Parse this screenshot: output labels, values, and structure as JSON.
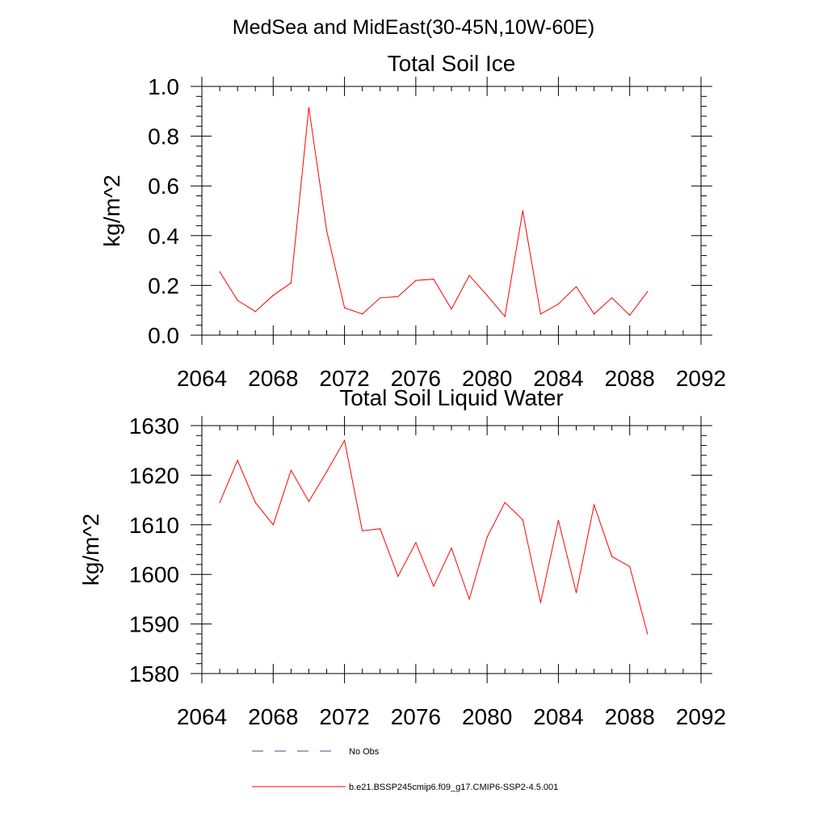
{
  "figure": {
    "title": "MedSea and MidEast(30-45N,10W-60E)"
  },
  "legend": [
    {
      "label": "No Obs",
      "color": "#4a4a8a",
      "dash": "dashed"
    },
    {
      "label": "b.e21.BSSP245cmip6.f09_g17.CMIP6-SSP2-4.5.001",
      "color": "#ff0000",
      "dash": "solid"
    }
  ],
  "chart_data": [
    {
      "type": "line",
      "title": "Total Soil Ice",
      "xlabel": "",
      "ylabel": "kg/m^2",
      "xlim": [
        2064,
        2092
      ],
      "ylim": [
        0,
        1
      ],
      "xticks": [
        2064,
        2068,
        2072,
        2076,
        2080,
        2084,
        2088,
        2092
      ],
      "xtick_labels": [
        "2064",
        "2068",
        "2072",
        "2076",
        "2080",
        "2084",
        "2088",
        "2092"
      ],
      "yticks": [
        0,
        0.2,
        0.4,
        0.6,
        0.8,
        1.0
      ],
      "ytick_labels": [
        "0.0",
        "0.2",
        "0.4",
        "0.6",
        "0.8",
        "1.0"
      ],
      "grid": false,
      "series": [
        {
          "color": "#ff0000",
          "x": [
            2065,
            2066,
            2067,
            2068,
            2069,
            2070,
            2071,
            2072,
            2073,
            2074,
            2075,
            2076,
            2077,
            2078,
            2079,
            2080,
            2081,
            2082,
            2083,
            2084,
            2085,
            2086,
            2087,
            2088,
            2089
          ],
          "values": [
            0.255,
            0.14,
            0.095,
            0.16,
            0.21,
            0.915,
            0.42,
            0.11,
            0.085,
            0.15,
            0.155,
            0.22,
            0.225,
            0.105,
            0.24,
            0.16,
            0.075,
            0.5,
            0.085,
            0.125,
            0.195,
            0.085,
            0.15,
            0.08,
            0.175
          ]
        }
      ]
    },
    {
      "type": "line",
      "title": "Total Soil Liquid Water",
      "xlabel": "",
      "ylabel": "kg/m^2",
      "xlim": [
        2064,
        2092
      ],
      "ylim": [
        1580,
        1630
      ],
      "xticks": [
        2064,
        2068,
        2072,
        2076,
        2080,
        2084,
        2088,
        2092
      ],
      "xtick_labels": [
        "2064",
        "2068",
        "2072",
        "2076",
        "2080",
        "2084",
        "2088",
        "2092"
      ],
      "yticks": [
        1580,
        1590,
        1600,
        1610,
        1620,
        1630
      ],
      "ytick_labels": [
        "1580",
        "1590",
        "1600",
        "1610",
        "1620",
        "1630"
      ],
      "grid": false,
      "series": [
        {
          "color": "#ff0000",
          "x": [
            2065,
            2066,
            2067,
            2068,
            2069,
            2070,
            2071,
            2072,
            2073,
            2074,
            2075,
            2076,
            2077,
            2078,
            2079,
            2080,
            2081,
            2082,
            2083,
            2084,
            2085,
            2086,
            2087,
            2088,
            2089
          ],
          "values": [
            1614.5,
            1623,
            1614.5,
            1610,
            1621,
            1614.7,
            1620.7,
            1627,
            1608.8,
            1609.2,
            1599.6,
            1606.4,
            1597.6,
            1605.3,
            1595,
            1607.5,
            1614.5,
            1611,
            1594.3,
            1610.9,
            1596.3,
            1614,
            1603.6,
            1601.6,
            1588
          ]
        }
      ]
    }
  ]
}
